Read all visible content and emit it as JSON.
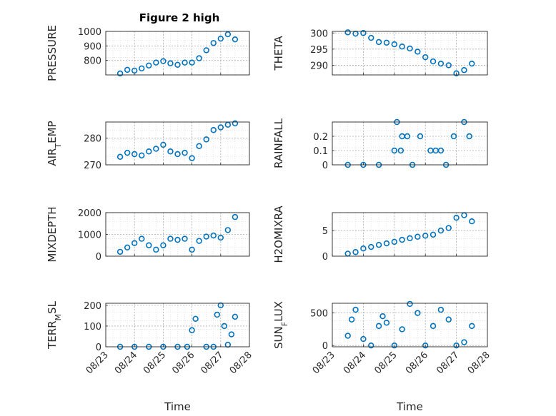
{
  "figure": {
    "title": "Figure 2 high"
  },
  "colors": {
    "marker": "#0072BD",
    "axis": "#262626",
    "grid": "#b0b0b0",
    "minor_grid": "#d9d9d9"
  },
  "chart_data": [
    {
      "type": "scatter",
      "ylabel": "PRESSURE",
      "xlabel": "",
      "xlim": [
        "08/23",
        "08/28"
      ],
      "ylim": [
        700,
        1000
      ],
      "yticks": [
        800,
        900,
        1000
      ],
      "xticks": [
        "08/23",
        "08/24",
        "08/25",
        "08/26",
        "08/27",
        "08/28"
      ],
      "grid": true,
      "x": [
        "08/23 12:00",
        "08/23 18:00",
        "08/24 00:00",
        "08/24 06:00",
        "08/24 12:00",
        "08/24 18:00",
        "08/25 00:00",
        "08/25 06:00",
        "08/25 12:00",
        "08/25 18:00",
        "08/26 00:00",
        "08/26 06:00",
        "08/26 12:00",
        "08/26 18:00",
        "08/27 00:00",
        "08/27 06:00",
        "08/27 12:00"
      ],
      "y": [
        710,
        735,
        730,
        745,
        765,
        785,
        795,
        780,
        770,
        785,
        785,
        815,
        870,
        920,
        950,
        980,
        945
      ]
    },
    {
      "type": "scatter",
      "ylabel": "THETA",
      "xlabel": "",
      "xlim": [
        "08/23",
        "08/28"
      ],
      "ylim": [
        287,
        300.5
      ],
      "yticks": [
        290,
        295,
        300
      ],
      "xticks": [
        "08/23",
        "08/24",
        "08/25",
        "08/26",
        "08/27",
        "08/28"
      ],
      "grid": true,
      "x": [
        "08/23 12:00",
        "08/23 18:00",
        "08/24 00:00",
        "08/24 06:00",
        "08/24 12:00",
        "08/24 18:00",
        "08/25 00:00",
        "08/25 06:00",
        "08/25 12:00",
        "08/25 18:00",
        "08/26 00:00",
        "08/26 06:00",
        "08/26 12:00",
        "08/26 18:00",
        "08/27 00:00",
        "08/27 06:00",
        "08/27 12:00"
      ],
      "y": [
        300.2,
        299.8,
        300,
        298.5,
        297.2,
        297,
        296.5,
        295.8,
        295.2,
        294.2,
        292.5,
        291.2,
        290.5,
        290,
        287.5,
        288.5,
        290.5
      ]
    },
    {
      "type": "scatter",
      "ylabel": "AIR_TEMP",
      "xlabel": "",
      "xlim": [
        "08/23",
        "08/28"
      ],
      "ylim": [
        270,
        286
      ],
      "yticks": [
        270,
        280
      ],
      "xticks": [
        "08/23",
        "08/24",
        "08/25",
        "08/26",
        "08/27",
        "08/28"
      ],
      "grid": true,
      "x": [
        "08/23 12:00",
        "08/23 18:00",
        "08/24 00:00",
        "08/24 06:00",
        "08/24 12:00",
        "08/24 18:00",
        "08/25 00:00",
        "08/25 06:00",
        "08/25 12:00",
        "08/25 18:00",
        "08/26 00:00",
        "08/26 06:00",
        "08/26 12:00",
        "08/26 18:00",
        "08/27 00:00",
        "08/27 06:00",
        "08/27 12:00"
      ],
      "y": [
        273,
        274.5,
        274,
        273.5,
        275,
        276,
        277.5,
        275,
        274,
        274.5,
        272.5,
        277,
        279.5,
        283,
        284,
        285,
        285.5
      ]
    },
    {
      "type": "scatter",
      "ylabel": "RAINFALL",
      "xlabel": "",
      "xlim": [
        "08/23",
        "08/28"
      ],
      "ylim": [
        0,
        0.3
      ],
      "yticks": [
        0,
        0.1,
        0.2
      ],
      "xticks": [
        "08/23",
        "08/24",
        "08/25",
        "08/26",
        "08/27",
        "08/28"
      ],
      "grid": true,
      "x": [
        "08/23 12:00",
        "08/24 00:00",
        "08/24 12:00",
        "08/25 00:00",
        "08/25 02:00",
        "08/25 05:00",
        "08/25 06:00",
        "08/25 10:00",
        "08/25 14:00",
        "08/25 20:00",
        "08/26 04:00",
        "08/26 08:00",
        "08/26 12:00",
        "08/26 16:00",
        "08/26 22:00",
        "08/27 06:00",
        "08/27 10:00"
      ],
      "y": [
        0,
        0,
        0,
        0.1,
        0.3,
        0.1,
        0.2,
        0.2,
        0,
        0.2,
        0.1,
        0.1,
        0.1,
        0,
        0.2,
        0.3,
        0.2
      ]
    },
    {
      "type": "scatter",
      "ylabel": "MIXDEPTH",
      "xlabel": "",
      "xlim": [
        "08/23",
        "08/28"
      ],
      "ylim": [
        0,
        2000
      ],
      "yticks": [
        0,
        1000,
        2000
      ],
      "xticks": [
        "08/23",
        "08/24",
        "08/25",
        "08/26",
        "08/27",
        "08/28"
      ],
      "grid": true,
      "x": [
        "08/23 12:00",
        "08/23 18:00",
        "08/24 00:00",
        "08/24 06:00",
        "08/24 12:00",
        "08/24 18:00",
        "08/25 00:00",
        "08/25 06:00",
        "08/25 12:00",
        "08/25 18:00",
        "08/26 00:00",
        "08/26 06:00",
        "08/26 12:00",
        "08/26 18:00",
        "08/27 00:00",
        "08/27 06:00",
        "08/27 12:00"
      ],
      "y": [
        200,
        400,
        600,
        800,
        500,
        300,
        500,
        800,
        750,
        800,
        300,
        700,
        900,
        950,
        850,
        1200,
        1800
      ]
    },
    {
      "type": "scatter",
      "ylabel": "H2OMIXRA",
      "xlabel": "",
      "xlim": [
        "08/23",
        "08/28"
      ],
      "ylim": [
        0,
        8.5
      ],
      "yticks": [
        0,
        5
      ],
      "xticks": [
        "08/23",
        "08/24",
        "08/25",
        "08/26",
        "08/27",
        "08/28"
      ],
      "grid": true,
      "x": [
        "08/23 12:00",
        "08/23 18:00",
        "08/24 00:00",
        "08/24 06:00",
        "08/24 12:00",
        "08/24 18:00",
        "08/25 00:00",
        "08/25 06:00",
        "08/25 12:00",
        "08/25 18:00",
        "08/26 00:00",
        "08/26 06:00",
        "08/26 12:00",
        "08/26 18:00",
        "08/27 00:00",
        "08/27 06:00",
        "08/27 12:00"
      ],
      "y": [
        0.5,
        0.8,
        1.5,
        1.8,
        2.2,
        2.5,
        2.8,
        3.2,
        3.5,
        3.8,
        4,
        4.2,
        5,
        5.5,
        7.5,
        8,
        6.8
      ]
    },
    {
      "type": "scatter",
      "ylabel": "TERR_MSL",
      "xlabel": "Time",
      "xlim": [
        "08/23",
        "08/28"
      ],
      "ylim": [
        0,
        210
      ],
      "yticks": [
        0,
        100,
        200
      ],
      "xticks": [
        "08/23",
        "08/24",
        "08/25",
        "08/26",
        "08/27",
        "08/28"
      ],
      "grid": true,
      "x": [
        "08/23 12:00",
        "08/24 00:00",
        "08/24 12:00",
        "08/25 00:00",
        "08/25 12:00",
        "08/25 20:00",
        "08/26 00:00",
        "08/26 03:00",
        "08/26 12:00",
        "08/26 18:00",
        "08/26 21:00",
        "08/27 00:00",
        "08/27 03:00",
        "08/27 06:00",
        "08/27 09:00",
        "08/27 12:00"
      ],
      "y": [
        0,
        0,
        0,
        0,
        0,
        0,
        80,
        135,
        0,
        0,
        155,
        200,
        100,
        10,
        60,
        145
      ]
    },
    {
      "type": "scatter",
      "ylabel": "SUN_FLUX",
      "xlabel": "Time",
      "xlim": [
        "08/23",
        "08/28"
      ],
      "ylim": [
        -20,
        650
      ],
      "yticks": [
        0,
        500
      ],
      "xticks": [
        "08/23",
        "08/24",
        "08/25",
        "08/26",
        "08/27",
        "08/28"
      ],
      "grid": true,
      "x": [
        "08/23 12:00",
        "08/23 15:00",
        "08/23 18:00",
        "08/24 00:00",
        "08/24 06:00",
        "08/24 12:00",
        "08/24 15:00",
        "08/24 18:00",
        "08/25 00:00",
        "08/25 06:00",
        "08/25 12:00",
        "08/25 18:00",
        "08/26 00:00",
        "08/26 06:00",
        "08/26 12:00",
        "08/26 18:00",
        "08/27 00:00",
        "08/27 06:00",
        "08/27 12:00"
      ],
      "y": [
        150,
        400,
        550,
        100,
        0,
        300,
        450,
        350,
        0,
        250,
        640,
        500,
        0,
        300,
        550,
        400,
        0,
        50,
        300
      ]
    }
  ]
}
